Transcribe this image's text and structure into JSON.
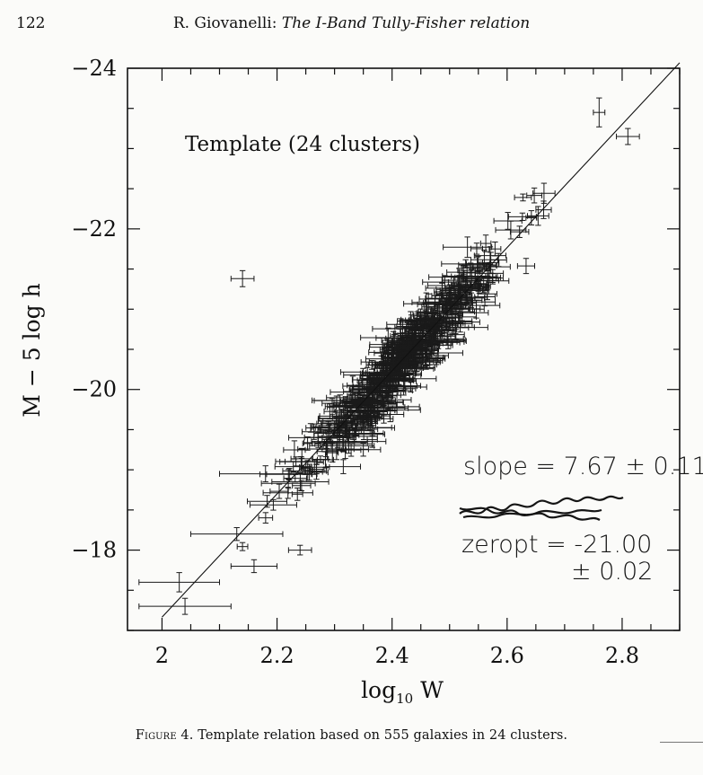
{
  "page": {
    "number": "122",
    "running_head_author": "R. Giovanelli:",
    "running_head_title": "The I-Band Tully-Fisher relation"
  },
  "caption": {
    "label": "Figure 4.",
    "text": "Template relation based on 555 galaxies in 24 clusters."
  },
  "handwritten": {
    "slope": "slope = 7.67 ± 0.11",
    "zeropoint": "zeropt = -21.00",
    "zeropoint_error": "± 0.02"
  },
  "chart_data": {
    "type": "scatter",
    "title": "",
    "annotation": "Template (24 clusters)",
    "xlabel": "log",
    "xlabel_sub": "10",
    "xlabel_var": "W",
    "ylabel": "M − 5 log h",
    "xlim": [
      1.94,
      2.9
    ],
    "ylim": [
      -17.0,
      -24.0
    ],
    "x_ticks": [
      2.0,
      2.2,
      2.4,
      2.6,
      2.8
    ],
    "x_tick_labels": [
      "2",
      "2.2",
      "2.4",
      "2.6",
      "2.8"
    ],
    "y_ticks": [
      -18,
      -20,
      -22,
      -24
    ],
    "y_tick_labels": [
      "−18",
      "−20",
      "−22",
      "−24"
    ],
    "grid": false,
    "fit_line": {
      "slope": 7.67,
      "zeropoint": -21.0,
      "x0": 2.5,
      "x_range": [
        2.0,
        2.9
      ]
    },
    "n_points": 555,
    "sample_points": [
      {
        "x": 2.14,
        "y": -21.38,
        "xerr": 0.02,
        "yerr": 0.1
      },
      {
        "x": 2.76,
        "y": -23.45,
        "xerr": 0.01,
        "yerr": 0.18
      },
      {
        "x": 2.81,
        "y": -23.15,
        "xerr": 0.02,
        "yerr": 0.1
      },
      {
        "x": 2.03,
        "y": -17.6,
        "xerr": 0.07,
        "yerr": 0.12
      },
      {
        "x": 2.04,
        "y": -17.3,
        "xerr": 0.08,
        "yerr": 0.1
      },
      {
        "x": 2.16,
        "y": -17.8,
        "xerr": 0.04,
        "yerr": 0.08
      },
      {
        "x": 2.13,
        "y": -18.2,
        "xerr": 0.08,
        "yerr": 0.08
      },
      {
        "x": 2.18,
        "y": -18.95,
        "xerr": 0.08,
        "yerr": 0.1
      },
      {
        "x": 2.35,
        "y": -19.25,
        "xerr": 0.03,
        "yerr": 0.08
      },
      {
        "x": 2.24,
        "y": -18.0,
        "xerr": 0.02,
        "yerr": 0.06
      }
    ]
  }
}
